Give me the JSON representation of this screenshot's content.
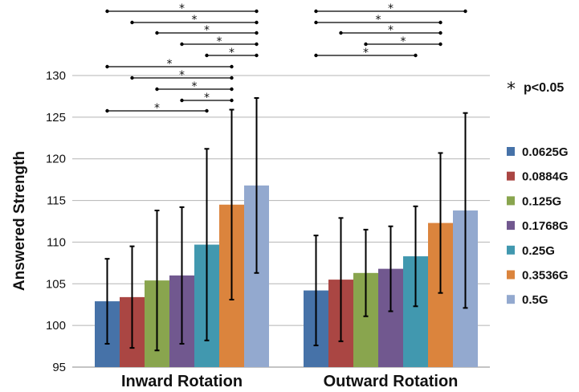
{
  "chart_data": {
    "type": "bar",
    "title": "",
    "xlabel": "",
    "ylabel": "Answered Strength",
    "ylim": [
      95,
      130
    ],
    "yticks": [
      95,
      100,
      105,
      110,
      115,
      120,
      125,
      130
    ],
    "grid": true,
    "legend_position": "right",
    "categories": [
      "Inward Rotation",
      "Outward Rotation"
    ],
    "series": [
      {
        "name": "0.0625G",
        "color": "#4672a8",
        "values": [
          102.9,
          104.2
        ],
        "error": [
          5.1,
          6.6
        ]
      },
      {
        "name": "0.0884G",
        "color": "#aa4643",
        "values": [
          103.4,
          105.5
        ],
        "error": [
          6.1,
          7.4
        ]
      },
      {
        "name": "0.125G",
        "color": "#89a54e",
        "values": [
          105.4,
          106.3
        ],
        "error": [
          8.4,
          5.2
        ]
      },
      {
        "name": "0.1768G",
        "color": "#71588f",
        "values": [
          106.0,
          106.8
        ],
        "error": [
          8.2,
          5.1
        ]
      },
      {
        "name": "0.25G",
        "color": "#4198af",
        "values": [
          109.7,
          108.3
        ],
        "error": [
          11.5,
          6.0
        ]
      },
      {
        "name": "0.3536G",
        "color": "#db843d",
        "values": [
          114.5,
          112.3
        ],
        "error": [
          11.4,
          8.4
        ]
      },
      {
        "name": "0.5G",
        "color": "#93a9cf",
        "values": [
          116.8,
          113.8
        ],
        "error": [
          10.5,
          11.7
        ]
      }
    ],
    "significance": {
      "marker": "*",
      "note": "p<0.05",
      "pairs": [
        {
          "category": 0,
          "from": 0,
          "to": 6,
          "level": 0
        },
        {
          "category": 0,
          "from": 1,
          "to": 6,
          "level": 1
        },
        {
          "category": 0,
          "from": 2,
          "to": 6,
          "level": 2
        },
        {
          "category": 0,
          "from": 3,
          "to": 6,
          "level": 3
        },
        {
          "category": 0,
          "from": 4,
          "to": 6,
          "level": 4
        },
        {
          "category": 0,
          "from": 0,
          "to": 5,
          "level": 5
        },
        {
          "category": 0,
          "from": 1,
          "to": 5,
          "level": 6
        },
        {
          "category": 0,
          "from": 2,
          "to": 5,
          "level": 7
        },
        {
          "category": 0,
          "from": 3,
          "to": 5,
          "level": 8
        },
        {
          "category": 0,
          "from": 0,
          "to": 4,
          "level": 9
        },
        {
          "category": 1,
          "from": 0,
          "to": 6,
          "level": 0
        },
        {
          "category": 1,
          "from": 0,
          "to": 5,
          "level": 1
        },
        {
          "category": 1,
          "from": 1,
          "to": 5,
          "level": 2
        },
        {
          "category": 1,
          "from": 2,
          "to": 5,
          "level": 3
        },
        {
          "category": 1,
          "from": 0,
          "to": 4,
          "level": 4
        }
      ]
    }
  }
}
